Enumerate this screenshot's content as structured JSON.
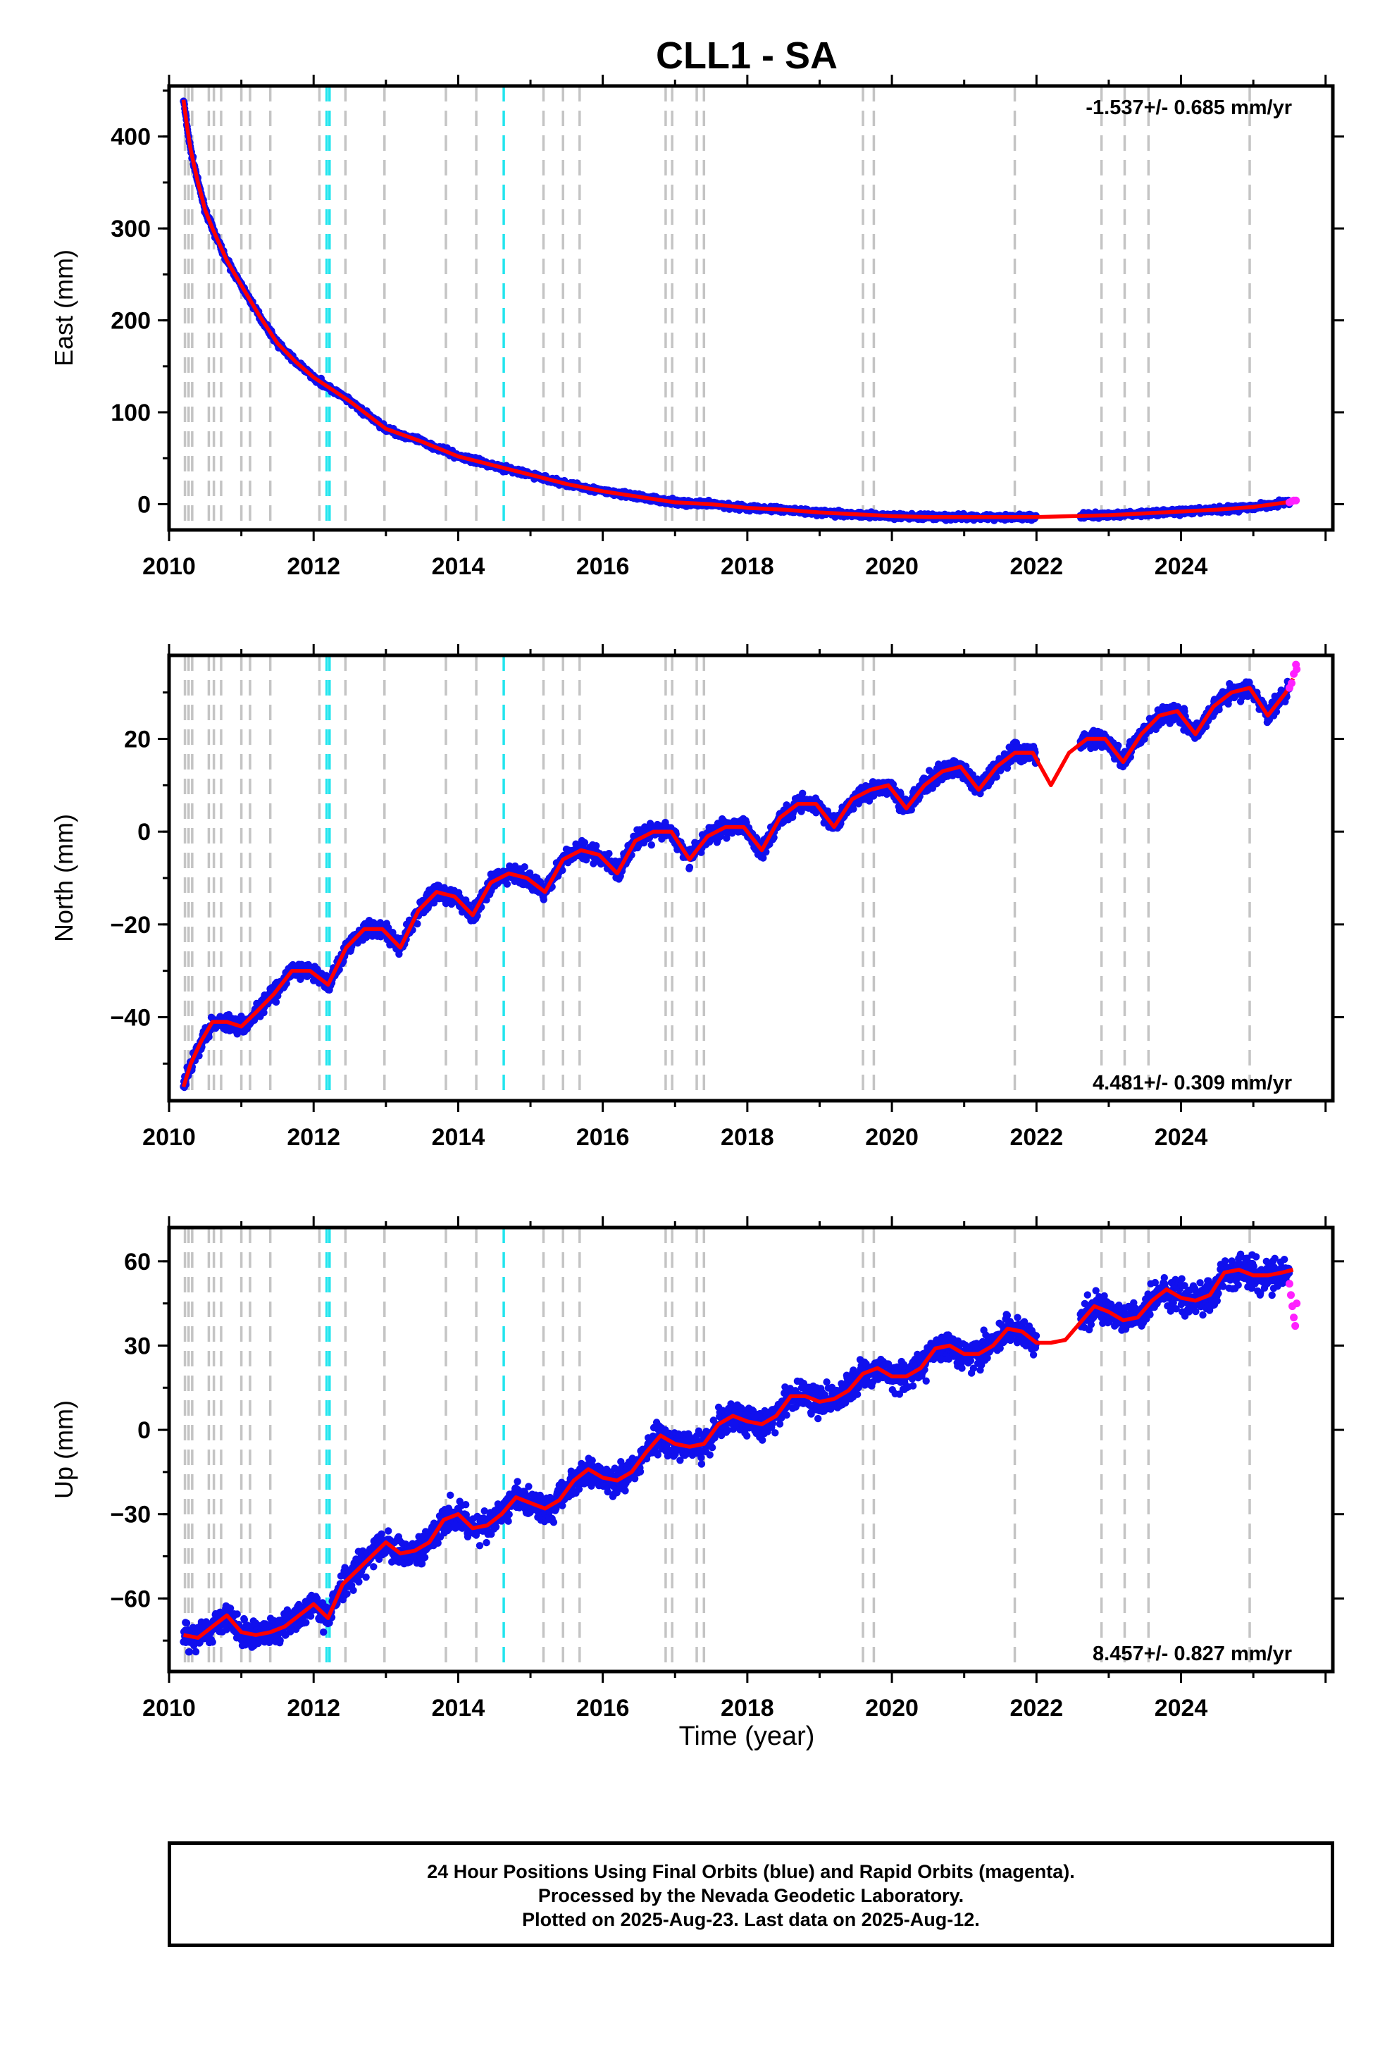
{
  "title": "CLL1 - SA",
  "x_axis_label": "Time (year)",
  "footer": {
    "line1": "24 Hour Positions Using Final Orbits (blue) and Rapid Orbits (magenta).",
    "line2": "Processed by the Nevada Geodetic Laboratory.",
    "line3": "Plotted on 2025-Aug-23. Last data on 2025-Aug-12."
  },
  "colors": {
    "final_orbits": "#1010ee",
    "rapid_orbits": "#ff20ff",
    "model": "#ff0000",
    "equipment_change": "#c4c4c4",
    "earthquake": "#22e5ee"
  },
  "chart_data": [
    {
      "type": "scatter",
      "ylabel": "East (mm)",
      "rate_text": "-1.537+/- 0.685 mm/yr",
      "xlim": [
        2010.0,
        2026.1
      ],
      "ylim": [
        -28,
        455
      ],
      "xticks": [
        2010,
        2012,
        2014,
        2016,
        2018,
        2020,
        2022,
        2024
      ],
      "yticks": [
        0,
        100,
        200,
        300,
        400
      ],
      "grid": false,
      "series": [
        {
          "role": "model",
          "x": [
            2010.2,
            2010.25,
            2010.3,
            2010.4,
            2010.5,
            2010.6,
            2010.8,
            2011.0,
            2011.25,
            2011.5,
            2011.75,
            2012.0,
            2012.5,
            2013.0,
            2013.5,
            2014.0,
            2014.5,
            2015.0,
            2015.5,
            2016.0,
            2016.5,
            2017.0,
            2017.5,
            2018.0,
            2018.5,
            2019.0,
            2019.5,
            2020.0,
            2020.5,
            2021.0,
            2021.5,
            2022.0,
            2022.5,
            2023.0,
            2023.5,
            2024.0,
            2024.5,
            2025.0,
            2025.55
          ],
          "y": [
            440,
            410,
            385,
            350,
            320,
            300,
            265,
            238,
            205,
            175,
            155,
            138,
            112,
            82,
            68,
            52,
            42,
            32,
            22,
            14,
            8,
            2,
            0,
            -4,
            -6,
            -9,
            -11,
            -13,
            -14,
            -14,
            -14,
            -14,
            -13,
            -12,
            -10,
            -8,
            -6,
            -3,
            3
          ]
        },
        {
          "role": "rapid_orbits",
          "x": [
            2025.5,
            2025.53,
            2025.56,
            2025.59
          ],
          "y": [
            2,
            3,
            4,
            4
          ]
        }
      ],
      "equipment_changes": [
        2010.22,
        2010.27,
        2010.32,
        2010.55,
        2010.62,
        2010.72,
        2011.0,
        2011.12,
        2011.4,
        2012.08,
        2012.44,
        2012.98,
        2013.83,
        2014.25,
        2015.18,
        2015.45,
        2015.68,
        2016.87,
        2016.96,
        2017.3,
        2017.4,
        2019.6,
        2019.75,
        2021.7,
        2022.9,
        2023.22,
        2023.55,
        2024.95
      ],
      "earthquakes": [
        2012.18,
        2012.22,
        2014.63
      ]
    },
    {
      "type": "scatter",
      "ylabel": "North (mm)",
      "rate_text": "4.481+/- 0.309 mm/yr",
      "xlim": [
        2010.0,
        2026.1
      ],
      "ylim": [
        -58,
        38
      ],
      "xticks": [
        2010,
        2012,
        2014,
        2016,
        2018,
        2020,
        2022,
        2024
      ],
      "yticks": [
        -40,
        -20,
        0,
        20
      ],
      "grid": false,
      "series": [
        {
          "role": "model",
          "x": [
            2010.2,
            2010.3,
            2010.45,
            2010.6,
            2010.8,
            2011.0,
            2011.2,
            2011.45,
            2011.7,
            2011.95,
            2012.2,
            2012.45,
            2012.7,
            2012.95,
            2013.2,
            2013.45,
            2013.7,
            2013.95,
            2014.2,
            2014.45,
            2014.7,
            2014.95,
            2015.2,
            2015.45,
            2015.7,
            2015.95,
            2016.2,
            2016.45,
            2016.7,
            2016.95,
            2017.2,
            2017.45,
            2017.7,
            2017.95,
            2018.2,
            2018.45,
            2018.7,
            2018.95,
            2019.2,
            2019.45,
            2019.7,
            2019.95,
            2020.2,
            2020.45,
            2020.7,
            2020.95,
            2021.2,
            2021.45,
            2021.7,
            2021.95,
            2022.2,
            2022.45,
            2022.7,
            2022.95,
            2023.2,
            2023.45,
            2023.7,
            2023.95,
            2024.2,
            2024.45,
            2024.7,
            2024.95,
            2025.2,
            2025.45,
            2025.55
          ],
          "y": [
            -55,
            -50,
            -45,
            -41,
            -41,
            -42,
            -39,
            -35,
            -30,
            -30,
            -33,
            -25,
            -21,
            -21,
            -25,
            -17,
            -13,
            -14,
            -18,
            -11,
            -9,
            -10,
            -13,
            -6,
            -4,
            -5,
            -9,
            -2,
            0,
            0,
            -6,
            -1,
            1,
            1,
            -4,
            3,
            6,
            6,
            1,
            7,
            9,
            10,
            5,
            10,
            13,
            14,
            9,
            14,
            17,
            17,
            10,
            17,
            20,
            20,
            15,
            21,
            25,
            26,
            21,
            27,
            30,
            31,
            25,
            30,
            33
          ]
        },
        {
          "role": "rapid_orbits",
          "x": [
            2025.5,
            2025.53,
            2025.56,
            2025.59,
            2025.6
          ],
          "y": [
            31,
            32,
            34,
            36,
            35
          ]
        }
      ],
      "equipment_changes": [
        2010.22,
        2010.27,
        2010.32,
        2010.55,
        2010.62,
        2010.72,
        2011.0,
        2011.12,
        2011.4,
        2012.08,
        2012.44,
        2012.98,
        2013.83,
        2014.25,
        2015.18,
        2015.45,
        2015.68,
        2016.87,
        2016.96,
        2017.3,
        2017.4,
        2019.6,
        2019.75,
        2021.7,
        2022.9,
        2023.22,
        2023.55,
        2024.95
      ],
      "earthquakes": [
        2012.18,
        2012.22,
        2014.63
      ]
    },
    {
      "type": "scatter",
      "ylabel": "Up (mm)",
      "rate_text": "8.457+/- 0.827 mm/yr",
      "xlim": [
        2010.0,
        2026.1
      ],
      "ylim": [
        -86,
        72
      ],
      "xticks": [
        2010,
        2012,
        2014,
        2016,
        2018,
        2020,
        2022,
        2024
      ],
      "yticks": [
        -60,
        -30,
        0,
        30,
        60
      ],
      "grid": false,
      "series": [
        {
          "role": "model",
          "x": [
            2010.2,
            2010.4,
            2010.6,
            2010.8,
            2011.0,
            2011.2,
            2011.4,
            2011.6,
            2011.8,
            2012.0,
            2012.2,
            2012.4,
            2012.6,
            2012.8,
            2013.0,
            2013.2,
            2013.4,
            2013.6,
            2013.8,
            2014.0,
            2014.2,
            2014.4,
            2014.6,
            2014.8,
            2015.0,
            2015.2,
            2015.4,
            2015.6,
            2015.8,
            2016.0,
            2016.2,
            2016.4,
            2016.6,
            2016.8,
            2017.0,
            2017.2,
            2017.4,
            2017.6,
            2017.8,
            2018.0,
            2018.2,
            2018.4,
            2018.6,
            2018.8,
            2019.0,
            2019.2,
            2019.4,
            2019.6,
            2019.8,
            2020.0,
            2020.2,
            2020.4,
            2020.6,
            2020.8,
            2021.0,
            2021.2,
            2021.4,
            2021.6,
            2021.8,
            2022.0,
            2022.2,
            2022.4,
            2022.6,
            2022.8,
            2023.0,
            2023.2,
            2023.4,
            2023.6,
            2023.8,
            2024.0,
            2024.2,
            2024.4,
            2024.6,
            2024.8,
            2025.0,
            2025.2,
            2025.4,
            2025.55
          ],
          "y": [
            -73,
            -74,
            -70,
            -66,
            -72,
            -73,
            -72,
            -70,
            -66,
            -62,
            -67,
            -55,
            -50,
            -45,
            -40,
            -44,
            -43,
            -40,
            -32,
            -30,
            -35,
            -34,
            -30,
            -24,
            -26,
            -28,
            -25,
            -18,
            -14,
            -17,
            -18,
            -15,
            -8,
            -2,
            -5,
            -6,
            -5,
            2,
            5,
            3,
            2,
            5,
            12,
            12,
            10,
            11,
            14,
            20,
            22,
            19,
            19,
            22,
            29,
            30,
            27,
            27,
            30,
            36,
            35,
            31,
            31,
            32,
            38,
            44,
            42,
            39,
            40,
            46,
            50,
            47,
            46,
            48,
            56,
            57,
            55,
            55,
            56,
            57
          ]
        },
        {
          "role": "rapid_orbits",
          "x": [
            2025.5,
            2025.52,
            2025.54,
            2025.56,
            2025.58,
            2025.6
          ],
          "y": [
            52,
            48,
            44,
            40,
            37,
            45
          ]
        }
      ],
      "equipment_changes": [
        2010.22,
        2010.27,
        2010.32,
        2010.55,
        2010.62,
        2010.72,
        2011.0,
        2011.12,
        2011.4,
        2012.08,
        2012.44,
        2012.98,
        2013.83,
        2014.25,
        2015.18,
        2015.45,
        2015.68,
        2016.87,
        2016.96,
        2017.3,
        2017.4,
        2019.6,
        2019.75,
        2021.7,
        2022.9,
        2023.22,
        2023.55,
        2024.95
      ],
      "earthquakes": [
        2012.18,
        2012.22,
        2014.63
      ]
    }
  ]
}
